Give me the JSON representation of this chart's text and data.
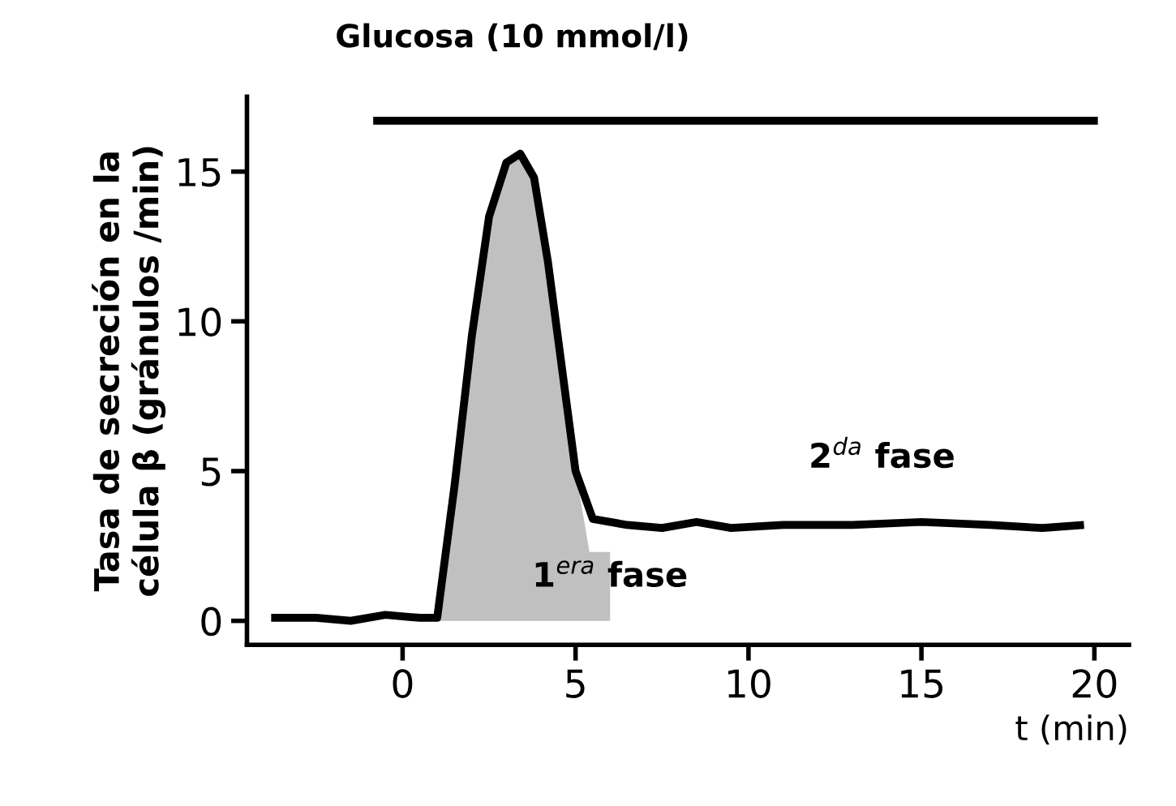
{
  "chart_data": {
    "type": "line",
    "title": "Glucosa (10 mmol/l)",
    "ylabel": "Tasa de secreción en la\ncélula β (gránulos /min)",
    "xlabel": "t (min)",
    "xlim": [
      -4.5,
      21
    ],
    "xticks": [
      0,
      5,
      10,
      15,
      20
    ],
    "ylim": [
      -0.8,
      17.5
    ],
    "yticks": [
      0,
      5,
      10,
      15
    ],
    "grid": false,
    "legend": false,
    "series": [
      {
        "type": "area",
        "color": "#c0c0c0",
        "x": [
          1.0,
          1.5,
          2.0,
          2.5,
          3.0,
          3.4,
          3.8,
          4.2,
          4.6,
          5.0,
          5.3,
          5.4,
          6.0,
          6.0
        ],
        "values": [
          0,
          4.5,
          9.5,
          13.5,
          15.3,
          15.6,
          14.8,
          12.0,
          8.5,
          5.0,
          3.0,
          2.3,
          2.3,
          0
        ]
      },
      {
        "color": "#000000",
        "x": [
          -3.8,
          -2.5,
          -1.5,
          -0.5,
          0.5,
          1.0,
          1.5,
          2.0,
          2.5,
          3.0,
          3.4,
          3.8,
          4.2,
          4.6,
          5.0,
          5.5,
          6.5,
          7.5,
          8.5,
          9.5,
          11,
          13,
          15,
          17,
          18.5,
          19.7
        ],
        "values": [
          0.1,
          0.1,
          0.0,
          0.2,
          0.1,
          0.1,
          4.5,
          9.5,
          13.5,
          15.3,
          15.6,
          14.8,
          12.0,
          8.5,
          5.0,
          3.4,
          3.2,
          3.1,
          3.3,
          3.1,
          3.2,
          3.2,
          3.3,
          3.2,
          3.1,
          3.2
        ]
      },
      {
        "color": "#000000",
        "x": [
          -0.85,
          20.1
        ],
        "values": [
          16.7,
          16.7
        ]
      }
    ],
    "annotations": [
      {
        "text": "1$^{era}$ fase",
        "x": 6.0,
        "y": 0.9
      },
      "2$^{da}$ fase"
    ]
  }
}
